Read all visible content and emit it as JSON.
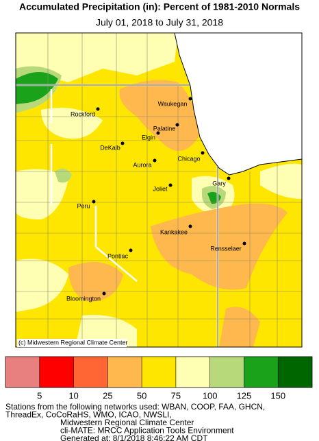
{
  "title": "Accumulated Precipitation (in): Percent of 1981-2010 Normals",
  "subtitle": "July 01, 2018 to July 31, 2018",
  "credit": "(c) Midwestern Regional Climate Center",
  "cities": [
    "Waukegan",
    "Rockford",
    "Palatine",
    "Elgin",
    "DeKalb",
    "Chicago",
    "Aurora",
    "Gary",
    "Joliet",
    "Peru",
    "Kankakee",
    "Rensselaer",
    "Pontiac",
    "Bloomington"
  ],
  "legend": {
    "colors": [
      "#e88080",
      "#ff0000",
      "#ff6633",
      "#ffb84d",
      "#ffe600",
      "#ffffb3",
      "#b8d97a",
      "#1aa31a",
      "#006600"
    ],
    "ticks": [
      5,
      10,
      25,
      50,
      75,
      100,
      125,
      150
    ]
  },
  "footer": [
    "Stations from the following networks used: WBAN, COOP, FAA, GHCN,",
    "ThreadEx, CoCoRaHS, WMO, ICAO, NWSLI,",
    "Midwestern Regional Climate Center",
    "cli-MATE: MRCC Application Tools Environment",
    "Generated at: 8/1/2018 8:46:22 AM CDT"
  ]
}
